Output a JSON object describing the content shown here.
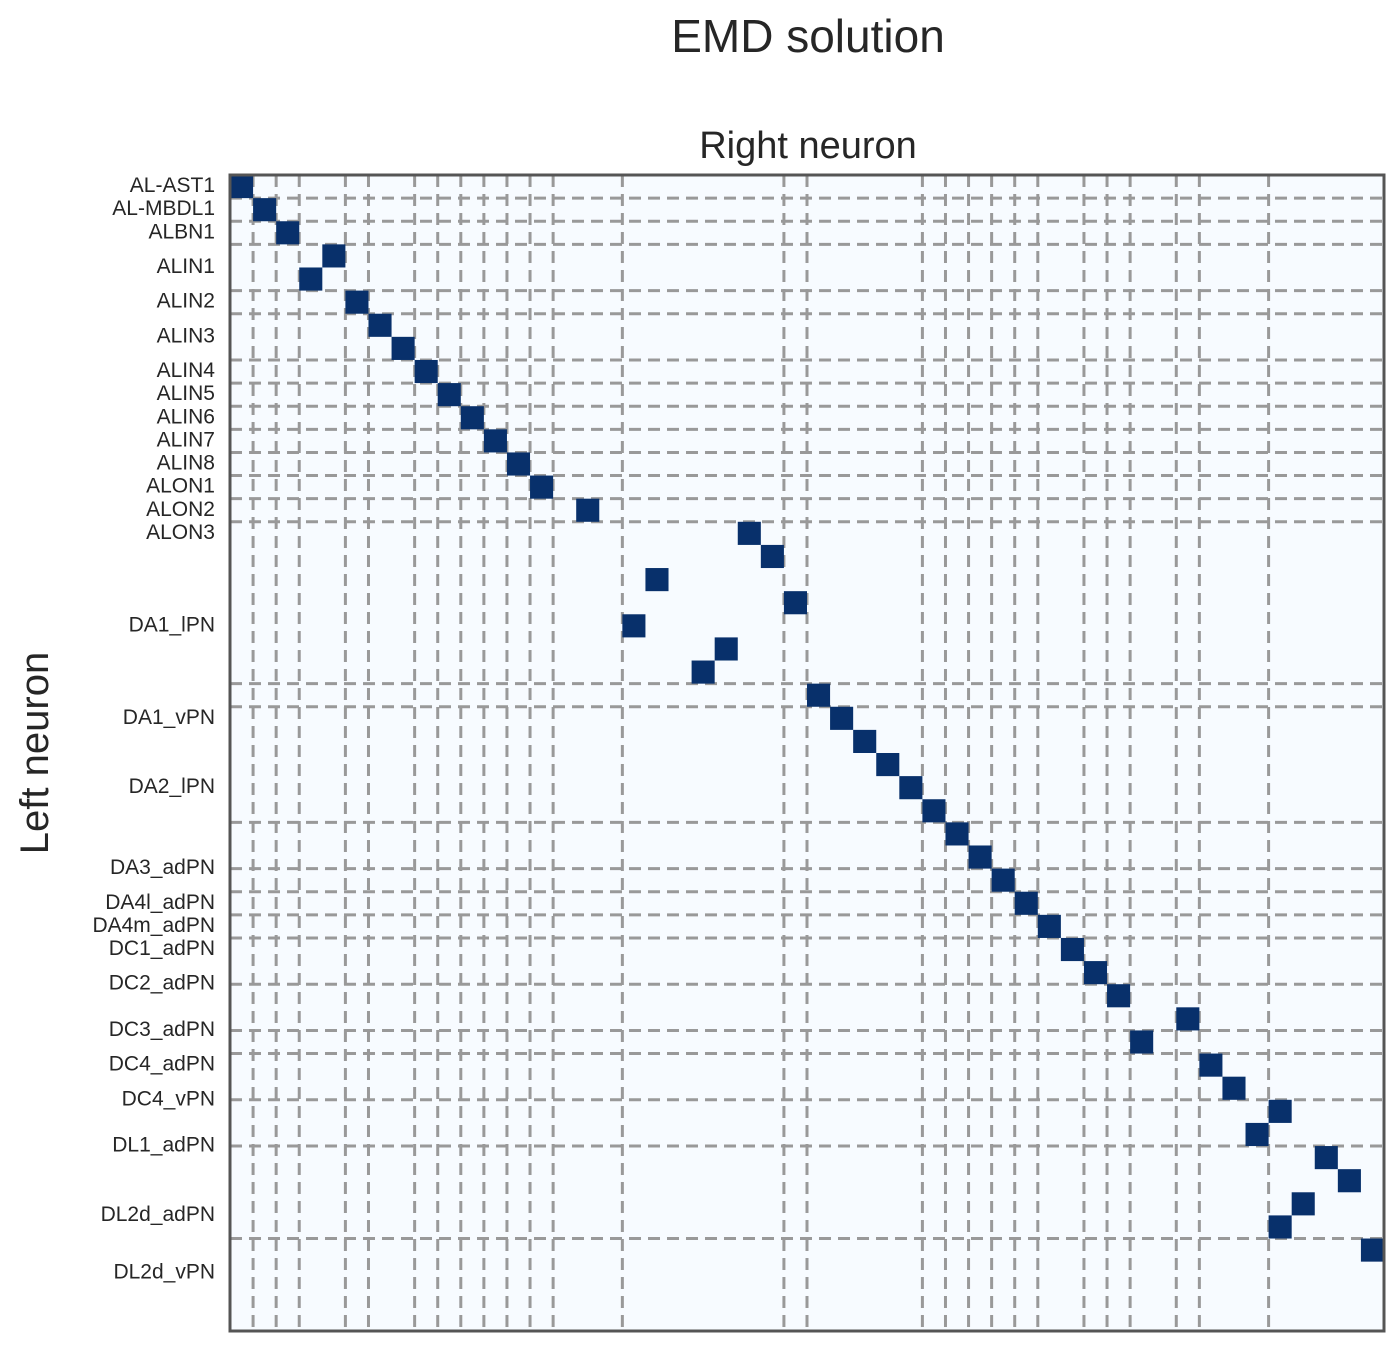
{
  "chart_data": {
    "type": "heatmap",
    "title": "EMD solution",
    "xlabel": "Right neuron",
    "ylabel": "Left neuron",
    "size": 50,
    "colors": {
      "background": "#f7fbff",
      "cell": "#08306b",
      "grid": "#999999",
      "frame": "#555555"
    },
    "groups": [
      {
        "label": "AL-AST1",
        "count": 1
      },
      {
        "label": "AL-MBDL1",
        "count": 1
      },
      {
        "label": "ALBN1",
        "count": 1
      },
      {
        "label": "ALIN1",
        "count": 2
      },
      {
        "label": "ALIN2",
        "count": 1
      },
      {
        "label": "ALIN3",
        "count": 2
      },
      {
        "label": "ALIN4",
        "count": 1
      },
      {
        "label": "ALIN5",
        "count": 1
      },
      {
        "label": "ALIN6",
        "count": 1
      },
      {
        "label": "ALIN7",
        "count": 1
      },
      {
        "label": "ALIN8",
        "count": 1
      },
      {
        "label": "ALON1",
        "count": 1
      },
      {
        "label": "ALON2",
        "count": 1
      },
      {
        "label": "ALON3",
        "count": 1
      },
      {
        "label": "DA1_lPN",
        "count": 7
      },
      {
        "label": "DA1_vPN",
        "count": 1
      },
      {
        "label": "DA2_lPN",
        "count": 5
      },
      {
        "label": "DA3_adPN",
        "count": 2
      },
      {
        "label": "DA4l_adPN",
        "count": 1
      },
      {
        "label": "DA4m_adPN",
        "count": 1
      },
      {
        "label": "DC1_adPN",
        "count": 1
      },
      {
        "label": "DC2_adPN",
        "count": 2
      },
      {
        "label": "DC3_adPN",
        "count": 2
      },
      {
        "label": "DC4_adPN",
        "count": 1
      },
      {
        "label": "DC4_vPN",
        "count": 2
      },
      {
        "label": "DL1_adPN",
        "count": 2
      },
      {
        "label": "DL2d_adPN",
        "count": 4
      },
      {
        "label": "DL2d_vPN",
        "count": 1
      }
    ],
    "x_group_boundaries": [
      1,
      2,
      3,
      5,
      6,
      8,
      9,
      10,
      11,
      12,
      13,
      14,
      17,
      24,
      25,
      30,
      31,
      32,
      33,
      34,
      35,
      37,
      38,
      39,
      41,
      42,
      45
    ],
    "y_group_boundaries": [
      1,
      2,
      3,
      5,
      6,
      8,
      9,
      10,
      11,
      12,
      13,
      14,
      15,
      22,
      23,
      28,
      30,
      31,
      32,
      33,
      35,
      37,
      38,
      40,
      42,
      46
    ],
    "assignments": [
      [
        0,
        0
      ],
      [
        1,
        1
      ],
      [
        2,
        2
      ],
      [
        3,
        4
      ],
      [
        4,
        3
      ],
      [
        5,
        5
      ],
      [
        6,
        6
      ],
      [
        7,
        7
      ],
      [
        8,
        8
      ],
      [
        9,
        9
      ],
      [
        10,
        10
      ],
      [
        11,
        11
      ],
      [
        12,
        12
      ],
      [
        13,
        13
      ],
      [
        14,
        15
      ],
      [
        15,
        22
      ],
      [
        16,
        23
      ],
      [
        17,
        18
      ],
      [
        18,
        24
      ],
      [
        19,
        17
      ],
      [
        20,
        21
      ],
      [
        21,
        20
      ],
      [
        22,
        25
      ],
      [
        23,
        26
      ],
      [
        24,
        27
      ],
      [
        25,
        28
      ],
      [
        26,
        29
      ],
      [
        27,
        30
      ],
      [
        28,
        31
      ],
      [
        29,
        32
      ],
      [
        30,
        33
      ],
      [
        31,
        34
      ],
      [
        32,
        35
      ],
      [
        33,
        36
      ],
      [
        34,
        37
      ],
      [
        35,
        38
      ],
      [
        36,
        41
      ],
      [
        37,
        39
      ],
      [
        38,
        42
      ],
      [
        39,
        43
      ],
      [
        40,
        45
      ],
      [
        41,
        44
      ],
      [
        42,
        47
      ],
      [
        43,
        48
      ],
      [
        44,
        46
      ],
      [
        45,
        45
      ],
      [
        46,
        49
      ]
    ]
  }
}
